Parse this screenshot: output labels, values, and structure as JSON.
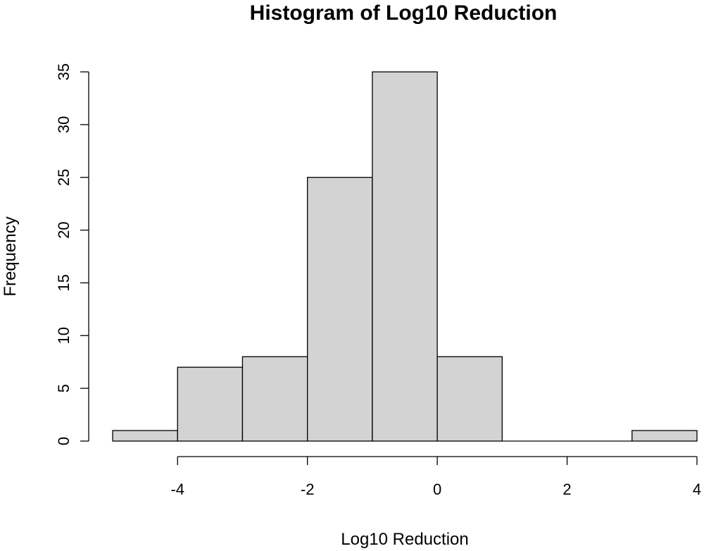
{
  "chart_data": {
    "type": "bar",
    "title": "Histogram of Log10 Reduction",
    "xlabel": "Log10 Reduction",
    "ylabel": "Frequency",
    "bins": [
      {
        "start": -5,
        "end": -4,
        "count": 1
      },
      {
        "start": -4,
        "end": -3,
        "count": 7
      },
      {
        "start": -3,
        "end": -2,
        "count": 8
      },
      {
        "start": -2,
        "end": -1,
        "count": 25
      },
      {
        "start": -1,
        "end": 0,
        "count": 35
      },
      {
        "start": 0,
        "end": 1,
        "count": 8
      },
      {
        "start": 1,
        "end": 2,
        "count": 0
      },
      {
        "start": 2,
        "end": 3,
        "count": 0
      },
      {
        "start": 3,
        "end": 4,
        "count": 1
      }
    ],
    "xticks": [
      "-4",
      "-2",
      "0",
      "2",
      "4"
    ],
    "yticks": [
      "0",
      "5",
      "10",
      "15",
      "20",
      "25",
      "30",
      "35"
    ],
    "xlim": [
      -5,
      4
    ],
    "ylim": [
      0,
      35
    ],
    "bar_color": "#d3d3d3",
    "grid": false,
    "legend": "none"
  }
}
